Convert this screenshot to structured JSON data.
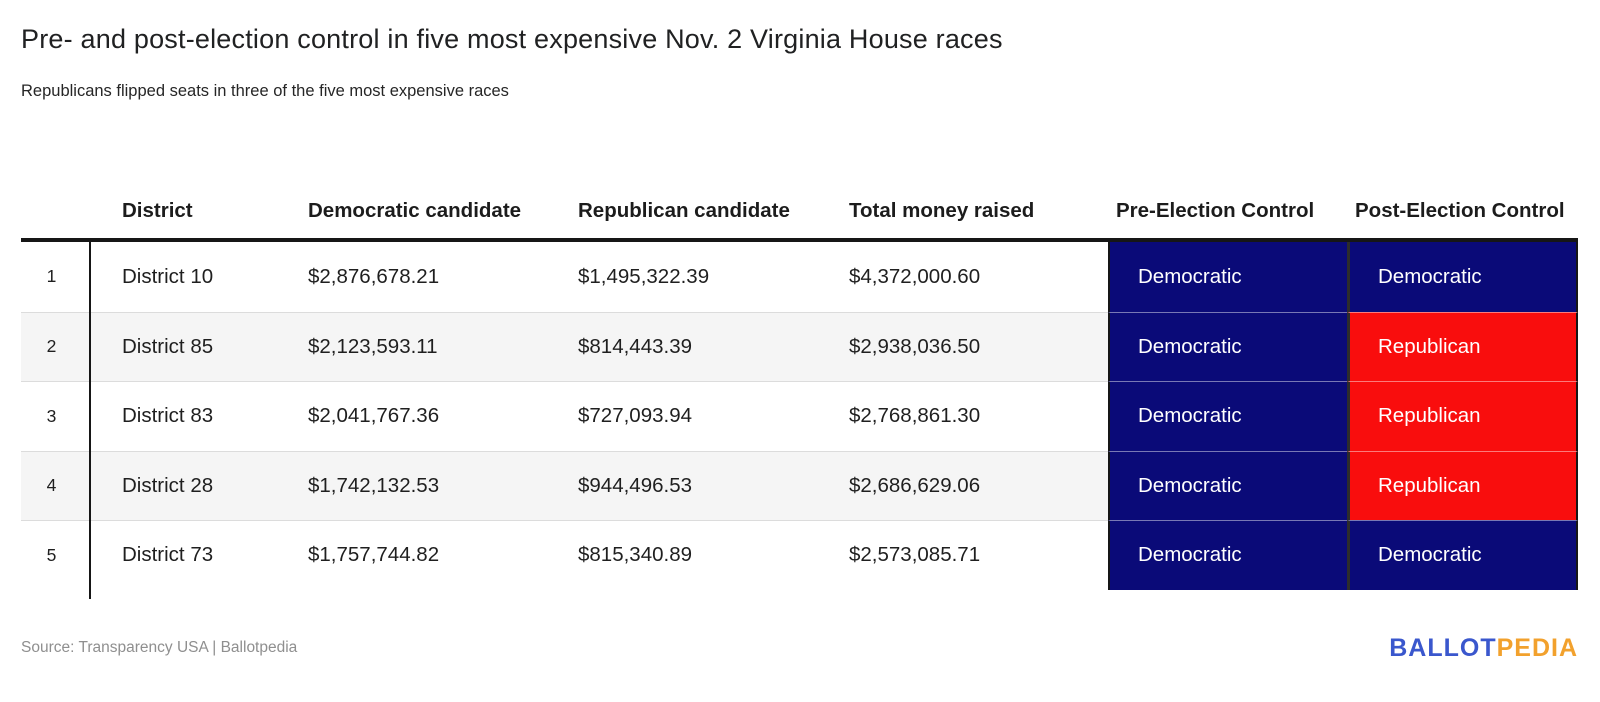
{
  "chart_data": {
    "type": "table",
    "title": "Pre- and post-election control in five most expensive Nov. 2 Virginia House races",
    "subtitle": "Republicans flipped seats in three of the five most expensive races",
    "columns": [
      "District",
      "Democratic candidate",
      "Republican candidate",
      "Total money raised",
      "Pre-Election Control",
      "Post-Election Control"
    ],
    "rows": [
      {
        "num": "1",
        "district": "District 10",
        "dem": "$2,876,678.21",
        "rep": "$1,495,322.39",
        "total": "$4,372,000.60",
        "pre": "Democratic",
        "post": "Democratic"
      },
      {
        "num": "2",
        "district": "District 85",
        "dem": "$2,123,593.11",
        "rep": "$814,443.39",
        "total": "$2,938,036.50",
        "pre": "Democratic",
        "post": "Republican"
      },
      {
        "num": "3",
        "district": "District 83",
        "dem": "$2,041,767.36",
        "rep": "$727,093.94",
        "total": "$2,768,861.30",
        "pre": "Democratic",
        "post": "Republican"
      },
      {
        "num": "4",
        "district": "District 28",
        "dem": "$1,742,132.53",
        "rep": "$944,496.53",
        "total": "$2,686,629.06",
        "pre": "Democratic",
        "post": "Republican"
      },
      {
        "num": "5",
        "district": "District 73",
        "dem": "$1,757,744.82",
        "rep": "$815,340.89",
        "total": "$2,573,085.71",
        "pre": "Democratic",
        "post": "Democratic"
      }
    ],
    "source": "Source: Transparency USA | Ballotpedia",
    "legend_position": "none",
    "grid": "row-borders"
  },
  "footer": {
    "logo_ballot": "BALLOT",
    "logo_pedia": "PEDIA"
  },
  "colors": {
    "democratic": "#0a0a78",
    "republican": "#f90d0d",
    "logo_blue": "#3a57cd",
    "logo_gold": "#f2a12d",
    "header_rule": "#161616"
  }
}
